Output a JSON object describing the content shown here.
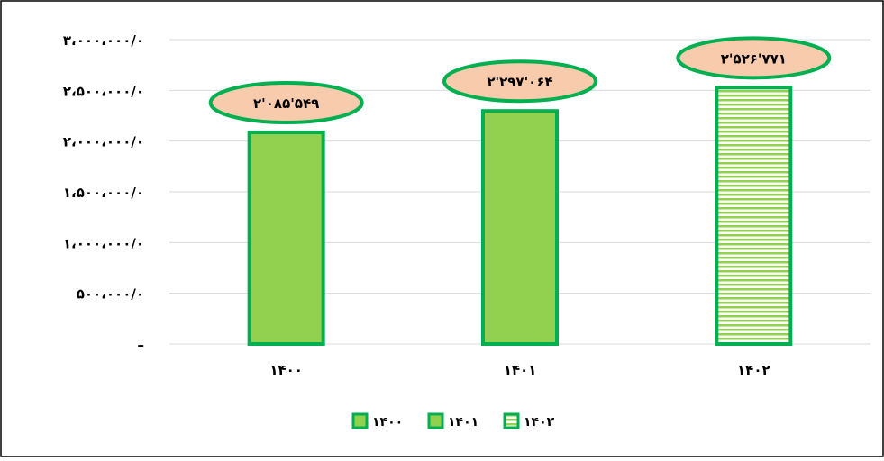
{
  "chart_data": {
    "type": "bar",
    "categories": [
      "۱۴۰۰",
      "۱۴۰۱",
      "۱۴۰۲"
    ],
    "values": [
      2085549,
      2297064,
      2526771
    ],
    "data_labels": [
      "۲'۰۸۵'۵۴۹",
      "۲'۲۹۷'۰۶۴",
      "۲'۵۲۶'۷۷۱"
    ],
    "ylim": [
      0,
      3000000
    ],
    "y_ticks": [
      0,
      500000,
      1000000,
      1500000,
      2000000,
      2500000,
      3000000
    ],
    "y_tick_labels": [
      "–",
      "۵۰۰،۰۰۰/۰",
      "۱،۰۰۰،۰۰۰/۰",
      "۱،۵۰۰،۰۰۰/۰",
      "۲،۰۰۰،۰۰۰/۰",
      "۲،۵۰۰،۰۰۰/۰",
      "۳،۰۰۰،۰۰۰/۰"
    ],
    "grid": true,
    "legend_position": "bottom",
    "legend": [
      "۱۴۰۰",
      "۱۴۰۱",
      "۱۴۰۲"
    ],
    "bar_styles": [
      "solid",
      "solid",
      "horizontal-stripes"
    ],
    "colors": {
      "bar_fill": "#92d050",
      "bar_border": "#00b050",
      "label_fill": "#f8cbad",
      "label_border": "#00b050",
      "grid": "#d9d9d9",
      "stripe_bg": "#ffffff"
    },
    "title": "",
    "xlabel": "",
    "ylabel": ""
  }
}
